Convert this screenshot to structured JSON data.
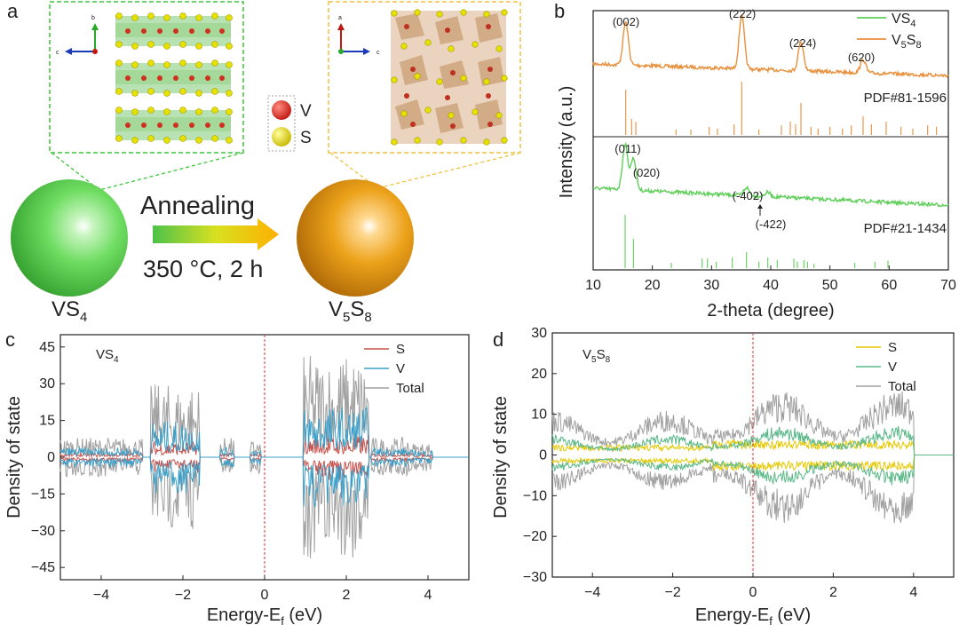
{
  "figure": {
    "panel_labels": {
      "a": "a",
      "b": "b",
      "c": "c",
      "d": "d"
    },
    "panel_a": {
      "left_material": {
        "base": "VS",
        "sub": "4"
      },
      "right_material": {
        "base": "V",
        "sub1": "5",
        "mid": "S",
        "sub2": "8"
      },
      "process_label": "Annealing",
      "condition": "350 °C, 2 h",
      "legend": [
        {
          "label": "V",
          "color": "#d9261c"
        },
        {
          "label": "S",
          "color": "#e6d800"
        }
      ],
      "left_axes": {
        "up": "b",
        "left": "c"
      },
      "right_axes": {
        "up": "a",
        "right": "c"
      },
      "colors": {
        "green_sphere": "#5fd15a",
        "orange_sphere": "#e8960f",
        "arrow_start": "#4cc24a",
        "arrow_end": "#ffb000"
      }
    }
  },
  "chart_data": [
    {
      "panel": "b",
      "type": "line",
      "xlabel": "2-theta (degree)",
      "ylabel": "Intensity (a.u.)",
      "xlim": [
        10,
        70
      ],
      "xticks": [
        10,
        20,
        30,
        40,
        50,
        60,
        70
      ],
      "series": [
        {
          "name": "VS4",
          "legend_base": "VS",
          "legend_sub": "4",
          "color": "#5fcf5a",
          "reference": "PDF#21-1434",
          "peaks": [
            {
              "x": 15.4,
              "h": 0.85,
              "label": "(011)"
            },
            {
              "x": 16.8,
              "h": 0.6,
              "label": "(020)"
            },
            {
              "x": 35.9,
              "h": 0.15,
              "label": "(-402)"
            },
            {
              "x": 39.5,
              "h": 0.08,
              "label": "(-422)"
            }
          ],
          "ref_lines": [
            [
              15.4,
              1.0
            ],
            [
              16.8,
              0.55
            ],
            [
              23.2,
              0.1
            ],
            [
              28.4,
              0.18
            ],
            [
              29.3,
              0.18
            ],
            [
              30.8,
              0.12
            ],
            [
              33.5,
              0.2
            ],
            [
              35.9,
              0.3
            ],
            [
              38.0,
              0.12
            ],
            [
              39.5,
              0.2
            ],
            [
              41.1,
              0.15
            ],
            [
              43.9,
              0.18
            ],
            [
              44.5,
              0.12
            ],
            [
              45.6,
              0.15
            ],
            [
              46.2,
              0.12
            ],
            [
              47.3,
              0.08
            ],
            [
              54.2,
              0.1
            ],
            [
              57.6,
              0.12
            ],
            [
              59.8,
              0.14
            ]
          ]
        },
        {
          "name": "V5S8",
          "legend_base": "V",
          "legend_sub1": "5",
          "legend_mid": "S",
          "legend_sub2": "8",
          "color": "#e8903c",
          "reference": "PDF#81-1596",
          "peaks": [
            {
              "x": 15.5,
              "h": 0.8,
              "label": "(002)"
            },
            {
              "x": 35.1,
              "h": 1.0,
              "label": "(222)"
            },
            {
              "x": 45.1,
              "h": 0.55,
              "label": "(224)"
            },
            {
              "x": 55.6,
              "h": 0.25,
              "label": "(620)"
            }
          ],
          "ref_lines": [
            [
              15.5,
              0.85
            ],
            [
              16.5,
              0.3
            ],
            [
              17.2,
              0.25
            ],
            [
              24.0,
              0.1
            ],
            [
              26.5,
              0.1
            ],
            [
              29.6,
              0.15
            ],
            [
              31.0,
              0.12
            ],
            [
              33.8,
              0.2
            ],
            [
              35.1,
              1.0
            ],
            [
              38.0,
              0.1
            ],
            [
              41.8,
              0.18
            ],
            [
              43.3,
              0.25
            ],
            [
              44.2,
              0.2
            ],
            [
              45.1,
              0.6
            ],
            [
              46.8,
              0.15
            ],
            [
              48.0,
              0.12
            ],
            [
              50.0,
              0.15
            ],
            [
              52.1,
              0.12
            ],
            [
              53.6,
              0.18
            ],
            [
              55.6,
              0.35
            ],
            [
              57.0,
              0.2
            ],
            [
              59.5,
              0.25
            ],
            [
              62.0,
              0.15
            ],
            [
              64.0,
              0.12
            ],
            [
              66.5,
              0.18
            ],
            [
              68.0,
              0.15
            ]
          ]
        }
      ]
    },
    {
      "panel": "c",
      "type": "line",
      "title_base": "VS",
      "title_sub": "4",
      "xlabel_pre": "Energy-E",
      "xlabel_sub": "f",
      "xlabel_post": " (eV)",
      "ylabel": "Density of state",
      "xlim": [
        -5,
        5
      ],
      "ylim": [
        -50,
        50
      ],
      "xticks": [
        -4,
        -2,
        0,
        2,
        4
      ],
      "yticks": [
        -45,
        -30,
        -15,
        0,
        15,
        30,
        45
      ],
      "fermi_x": 0,
      "series": [
        {
          "name": "S",
          "color": "#c8504a"
        },
        {
          "name": "V",
          "color": "#3a9fc8"
        },
        {
          "name": "Total",
          "color": "#a0a0a0"
        }
      ],
      "bands": [
        [
          -5.0,
          -3.0,
          8,
          0.5
        ],
        [
          -2.8,
          -1.6,
          30,
          0.55
        ],
        [
          -1.1,
          -0.75,
          8,
          0.5
        ],
        [
          -0.35,
          -0.1,
          7,
          0.5
        ],
        [
          0.95,
          2.55,
          42,
          0.4
        ],
        [
          2.6,
          3.5,
          8,
          0.5
        ],
        [
          3.5,
          4.1,
          6,
          0.5
        ]
      ]
    },
    {
      "panel": "d",
      "type": "line",
      "title_base": "V",
      "title_sub1": "5",
      "title_mid": "S",
      "title_sub2": "8",
      "xlabel_pre": "Energy-E",
      "xlabel_sub": "f",
      "xlabel_post": " (eV)",
      "ylabel": "Density of state",
      "xlim": [
        -5,
        5
      ],
      "ylim": [
        -30,
        30
      ],
      "xticks": [
        -4,
        -2,
        0,
        2,
        4
      ],
      "yticks": [
        -30,
        -20,
        -10,
        0,
        10,
        20,
        30
      ],
      "fermi_x": 0,
      "series": [
        {
          "name": "S",
          "color": "#e6c800"
        },
        {
          "name": "V",
          "color": "#5ab888"
        },
        {
          "name": "Total",
          "color": "#a0a0a0"
        }
      ],
      "bands": [
        [
          -5.0,
          -1.0,
          14,
          0.35
        ],
        [
          -1.0,
          4.0,
          20,
          0.35
        ]
      ]
    }
  ]
}
